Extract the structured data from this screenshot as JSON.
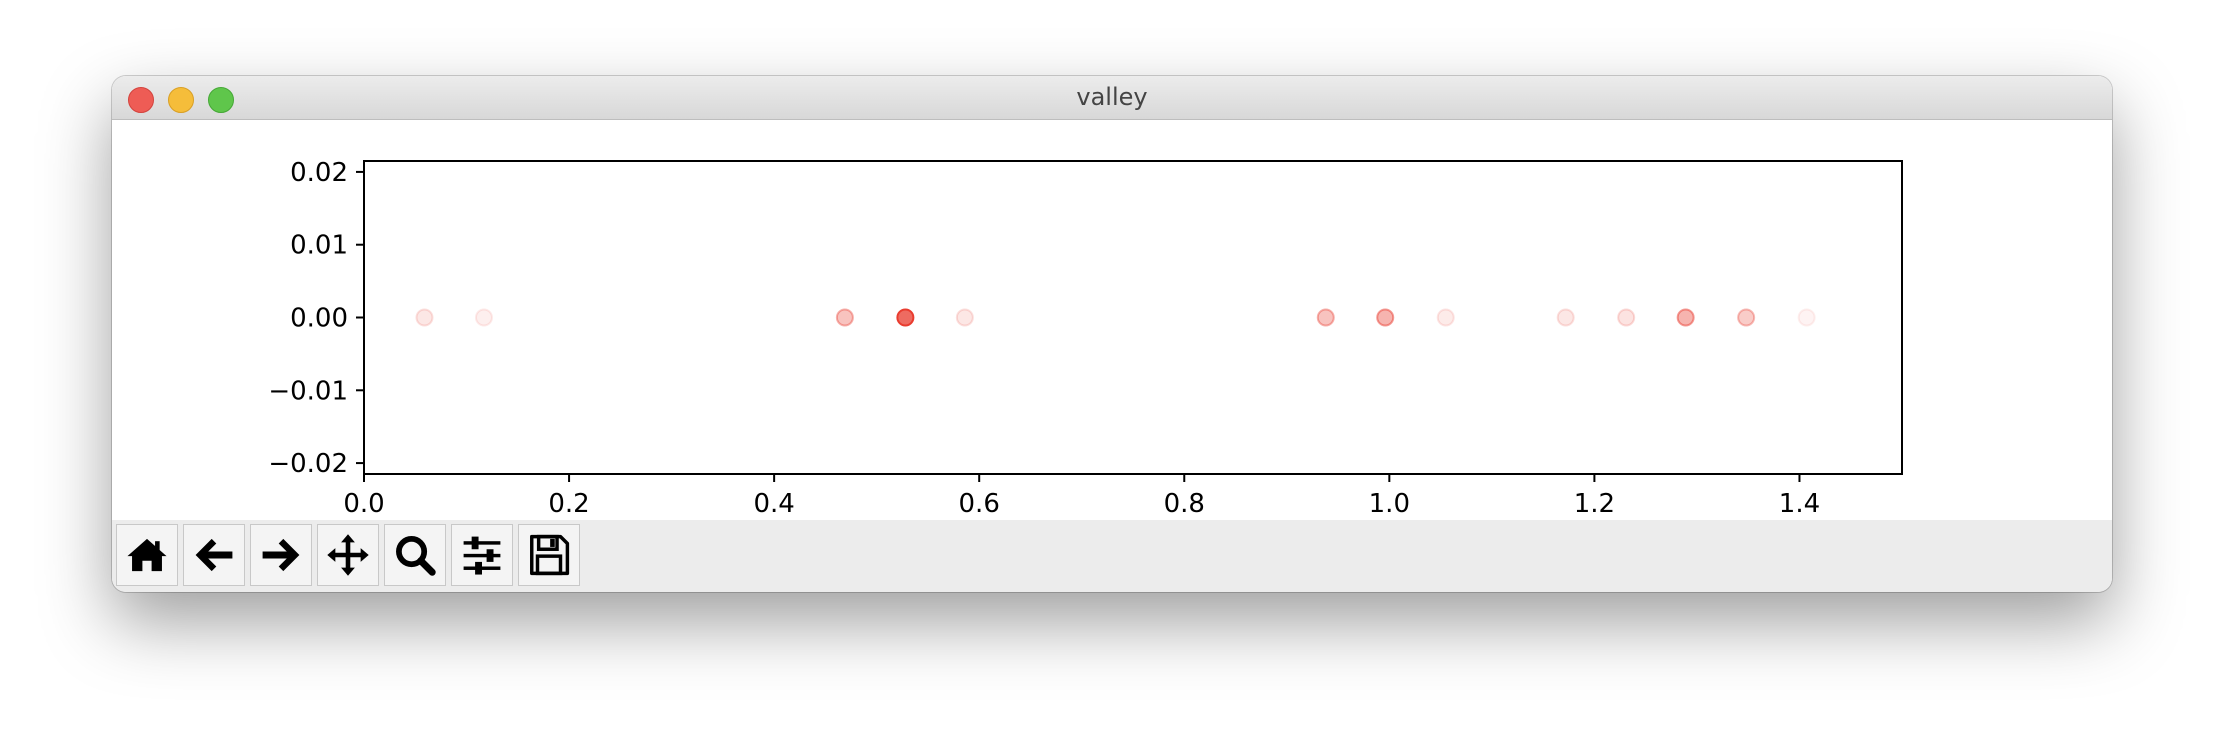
{
  "window": {
    "title": "valley"
  },
  "toolbar": {
    "buttons": [
      {
        "name": "home-button",
        "icon": "home-icon"
      },
      {
        "name": "back-button",
        "icon": "arrow-left-icon"
      },
      {
        "name": "forward-button",
        "icon": "arrow-right-icon"
      },
      {
        "name": "pan-button",
        "icon": "move-icon"
      },
      {
        "name": "zoom-button",
        "icon": "search-icon"
      },
      {
        "name": "configure-subplots-button",
        "icon": "sliders-icon"
      },
      {
        "name": "save-button",
        "icon": "floppy-disk-icon"
      }
    ]
  },
  "chart_data": {
    "type": "scatter",
    "title": "",
    "xlabel": "",
    "ylabel": "",
    "xlim": [
      0.0,
      1.5
    ],
    "ylim": [
      -0.0215,
      0.0215
    ],
    "xticks": [
      0.0,
      0.2,
      0.4,
      0.6,
      0.8,
      1.0,
      1.2,
      1.4
    ],
    "xtick_labels": [
      "0.0",
      "0.2",
      "0.4",
      "0.6",
      "0.8",
      "1.0",
      "1.2",
      "1.4"
    ],
    "yticks": [
      0.02,
      0.01,
      0.0,
      -0.01,
      -0.02
    ],
    "ytick_labels": [
      "0.02",
      "0.01",
      "0.00",
      "−0.01",
      "−0.02"
    ],
    "grid": false,
    "marker_color": "#e8392c",
    "points": [
      {
        "x": 0.059,
        "y": 0.0,
        "alpha": 0.12
      },
      {
        "x": 0.117,
        "y": 0.0,
        "alpha": 0.08
      },
      {
        "x": 0.469,
        "y": 0.0,
        "alpha": 0.3
      },
      {
        "x": 0.528,
        "y": 0.0,
        "alpha": 0.75
      },
      {
        "x": 0.586,
        "y": 0.0,
        "alpha": 0.12
      },
      {
        "x": 0.938,
        "y": 0.0,
        "alpha": 0.3
      },
      {
        "x": 0.996,
        "y": 0.0,
        "alpha": 0.38
      },
      {
        "x": 1.055,
        "y": 0.0,
        "alpha": 0.1
      },
      {
        "x": 1.172,
        "y": 0.0,
        "alpha": 0.12
      },
      {
        "x": 1.231,
        "y": 0.0,
        "alpha": 0.14
      },
      {
        "x": 1.289,
        "y": 0.0,
        "alpha": 0.38
      },
      {
        "x": 1.348,
        "y": 0.0,
        "alpha": 0.26
      },
      {
        "x": 1.407,
        "y": 0.0,
        "alpha": 0.06
      }
    ]
  }
}
